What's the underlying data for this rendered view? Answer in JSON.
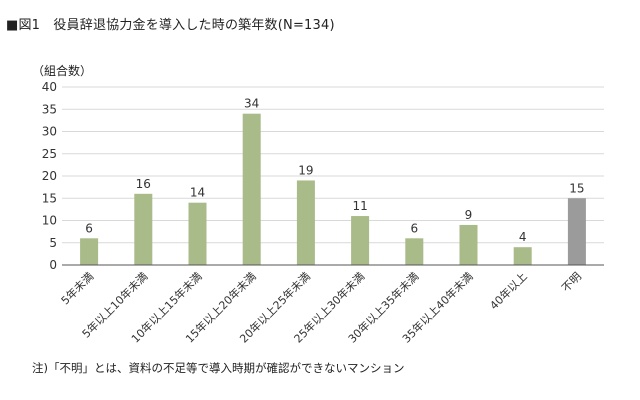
{
  "title": "■図1　役員辞退協力金を導入した時の築年数(N=134)",
  "note": "注)「不明」とは、資料の不足等で導入時期が確認ができないマンション",
  "colors": {
    "bar": "#a8bb88",
    "bar_unknown": "#9b9b9b",
    "grid": "#d9d9d9",
    "axis": "#555555"
  },
  "chart_data": {
    "type": "bar",
    "title": "役員辞退協力金を導入した時の築年数(N=134)",
    "ylabel": "（組合数）",
    "xlabel": "",
    "ylim": [
      0,
      40
    ],
    "yticks": [
      0,
      5,
      10,
      15,
      20,
      25,
      30,
      35,
      40
    ],
    "grid": true,
    "categories": [
      "5年未満",
      "5年以上10年未満",
      "10年以上15年未満",
      "15年以上20年未満",
      "20年以上25年未満",
      "25年以上30年未満",
      "30年以上35年未満",
      "35年以上40年未満",
      "40年以上",
      "不明"
    ],
    "values": [
      6,
      16,
      14,
      34,
      19,
      11,
      6,
      9,
      4,
      15
    ]
  }
}
